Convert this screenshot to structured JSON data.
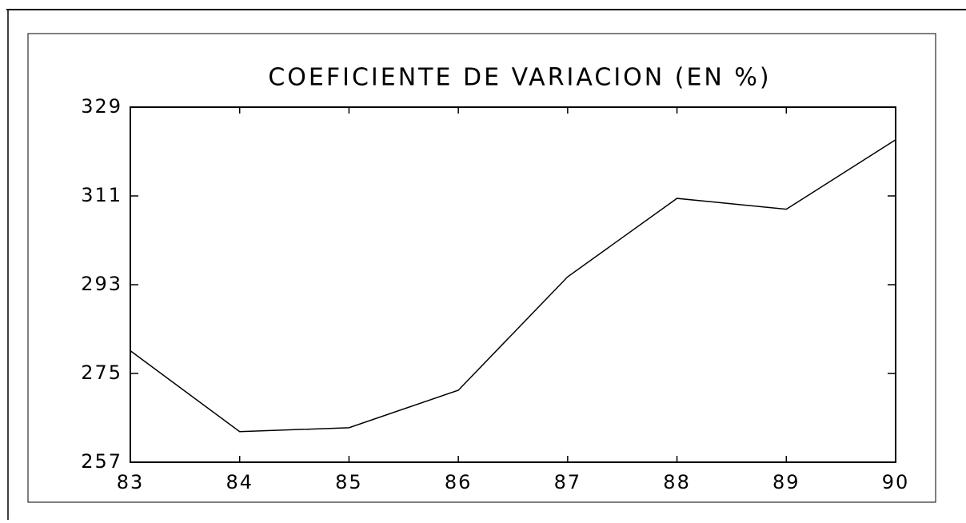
{
  "chart_data": {
    "type": "line",
    "title": "COEFICIENTE DE VARIACION   (EN %)",
    "categories": [
      "83",
      "84",
      "85",
      "86",
      "87",
      "88",
      "89",
      "90"
    ],
    "series": [
      {
        "name": "Coeficiente de variacion",
        "color": "#000000",
        "values": [
          279.6,
          263.2,
          264.0,
          271.6,
          294.6,
          310.5,
          308.3,
          322.4
        ]
      }
    ],
    "ylim": [
      257,
      329
    ],
    "yticks": [
      257,
      275,
      293,
      311,
      329
    ],
    "grid": false
  }
}
